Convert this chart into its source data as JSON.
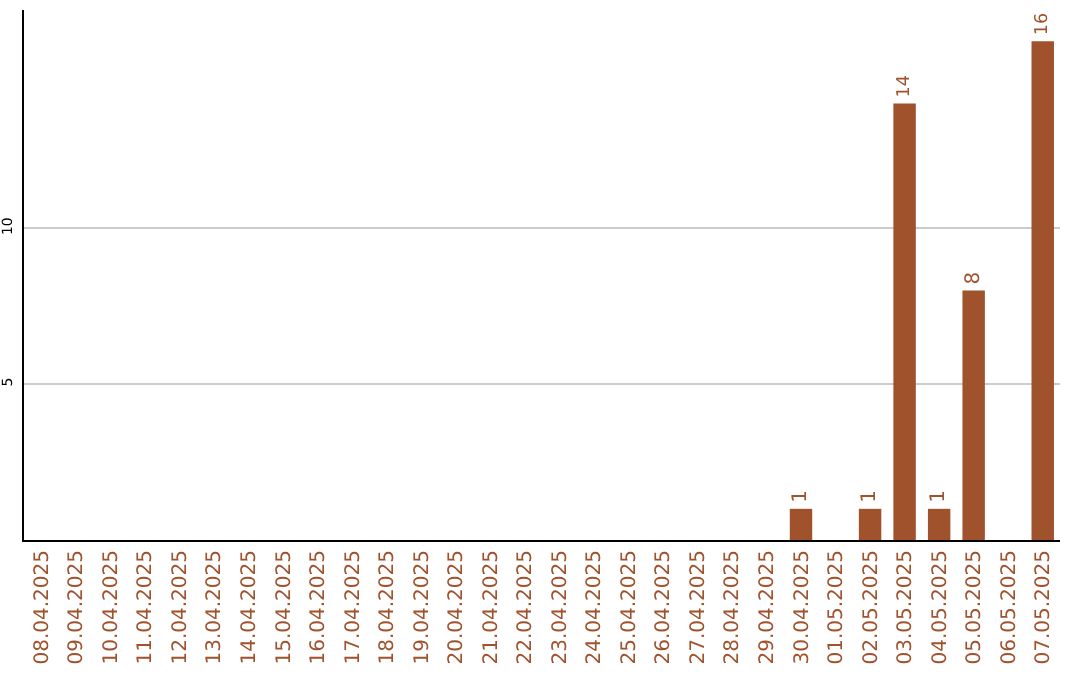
{
  "chart_data": {
    "type": "bar",
    "categories": [
      "08.04.2025",
      "09.04.2025",
      "10.04.2025",
      "11.04.2025",
      "12.04.2025",
      "13.04.2025",
      "14.04.2025",
      "15.04.2025",
      "16.04.2025",
      "17.04.2025",
      "18.04.2025",
      "19.04.2025",
      "20.04.2025",
      "21.04.2025",
      "22.04.2025",
      "23.04.2025",
      "24.04.2025",
      "25.04.2025",
      "26.04.2025",
      "27.04.2025",
      "28.04.2025",
      "29.04.2025",
      "30.04.2025",
      "01.05.2025",
      "02.05.2025",
      "03.05.2025",
      "04.05.2025",
      "05.05.2025",
      "06.05.2025",
      "07.05.2025"
    ],
    "values": [
      0,
      0,
      0,
      0,
      0,
      0,
      0,
      0,
      0,
      0,
      0,
      0,
      0,
      0,
      0,
      0,
      0,
      0,
      0,
      0,
      0,
      0,
      1,
      0,
      1,
      14,
      1,
      8,
      0,
      16
    ],
    "value_labels": [
      null,
      null,
      null,
      null,
      null,
      null,
      null,
      null,
      null,
      null,
      null,
      null,
      null,
      null,
      null,
      null,
      null,
      null,
      null,
      null,
      null,
      null,
      "1",
      null,
      "1",
      "14",
      "1",
      "8",
      null,
      "16"
    ],
    "color": "#a0522d",
    "ylim": [
      0,
      17
    ],
    "yticks": [
      5,
      10
    ],
    "grid": "y"
  }
}
